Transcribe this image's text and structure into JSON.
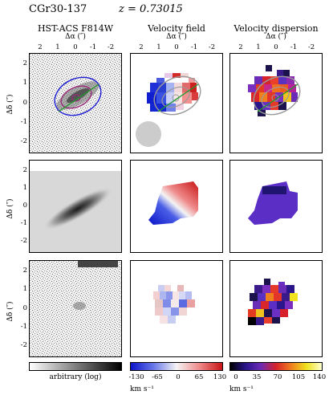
{
  "header": {
    "object_name": "CGr30-137",
    "redshift": "z = 0.73015"
  },
  "columns": [
    {
      "title": "HST-ACS F814W"
    },
    {
      "title": "Velocity field"
    },
    {
      "title": "Velocity dispersion"
    }
  ],
  "axes": {
    "x_label": "Δα (″)",
    "y_label": "Δδ (″)",
    "x_ticks": [
      "2",
      "1",
      "0",
      "-1",
      "-2"
    ],
    "y_ticks": [
      "2",
      "1",
      "0",
      "-1",
      "-2"
    ]
  },
  "colorbars": [
    {
      "label": "arbitrary (log)",
      "unit": "",
      "ticks": []
    },
    {
      "label": "",
      "unit": "km s⁻¹",
      "ticks": [
        "-130",
        "-65",
        "0",
        "65",
        "130"
      ]
    },
    {
      "label": "",
      "unit": "km s⁻¹",
      "ticks": [
        "0",
        "35",
        "70",
        "105",
        "140"
      ]
    }
  ],
  "colors": {
    "contour_blue": "#1f1fd6",
    "contour_purple": "#9b2a7a",
    "contour_grey": "#9a9a9a",
    "pa_line_green": "#1f9a2a",
    "psf_disk": "#cccccc"
  }
}
